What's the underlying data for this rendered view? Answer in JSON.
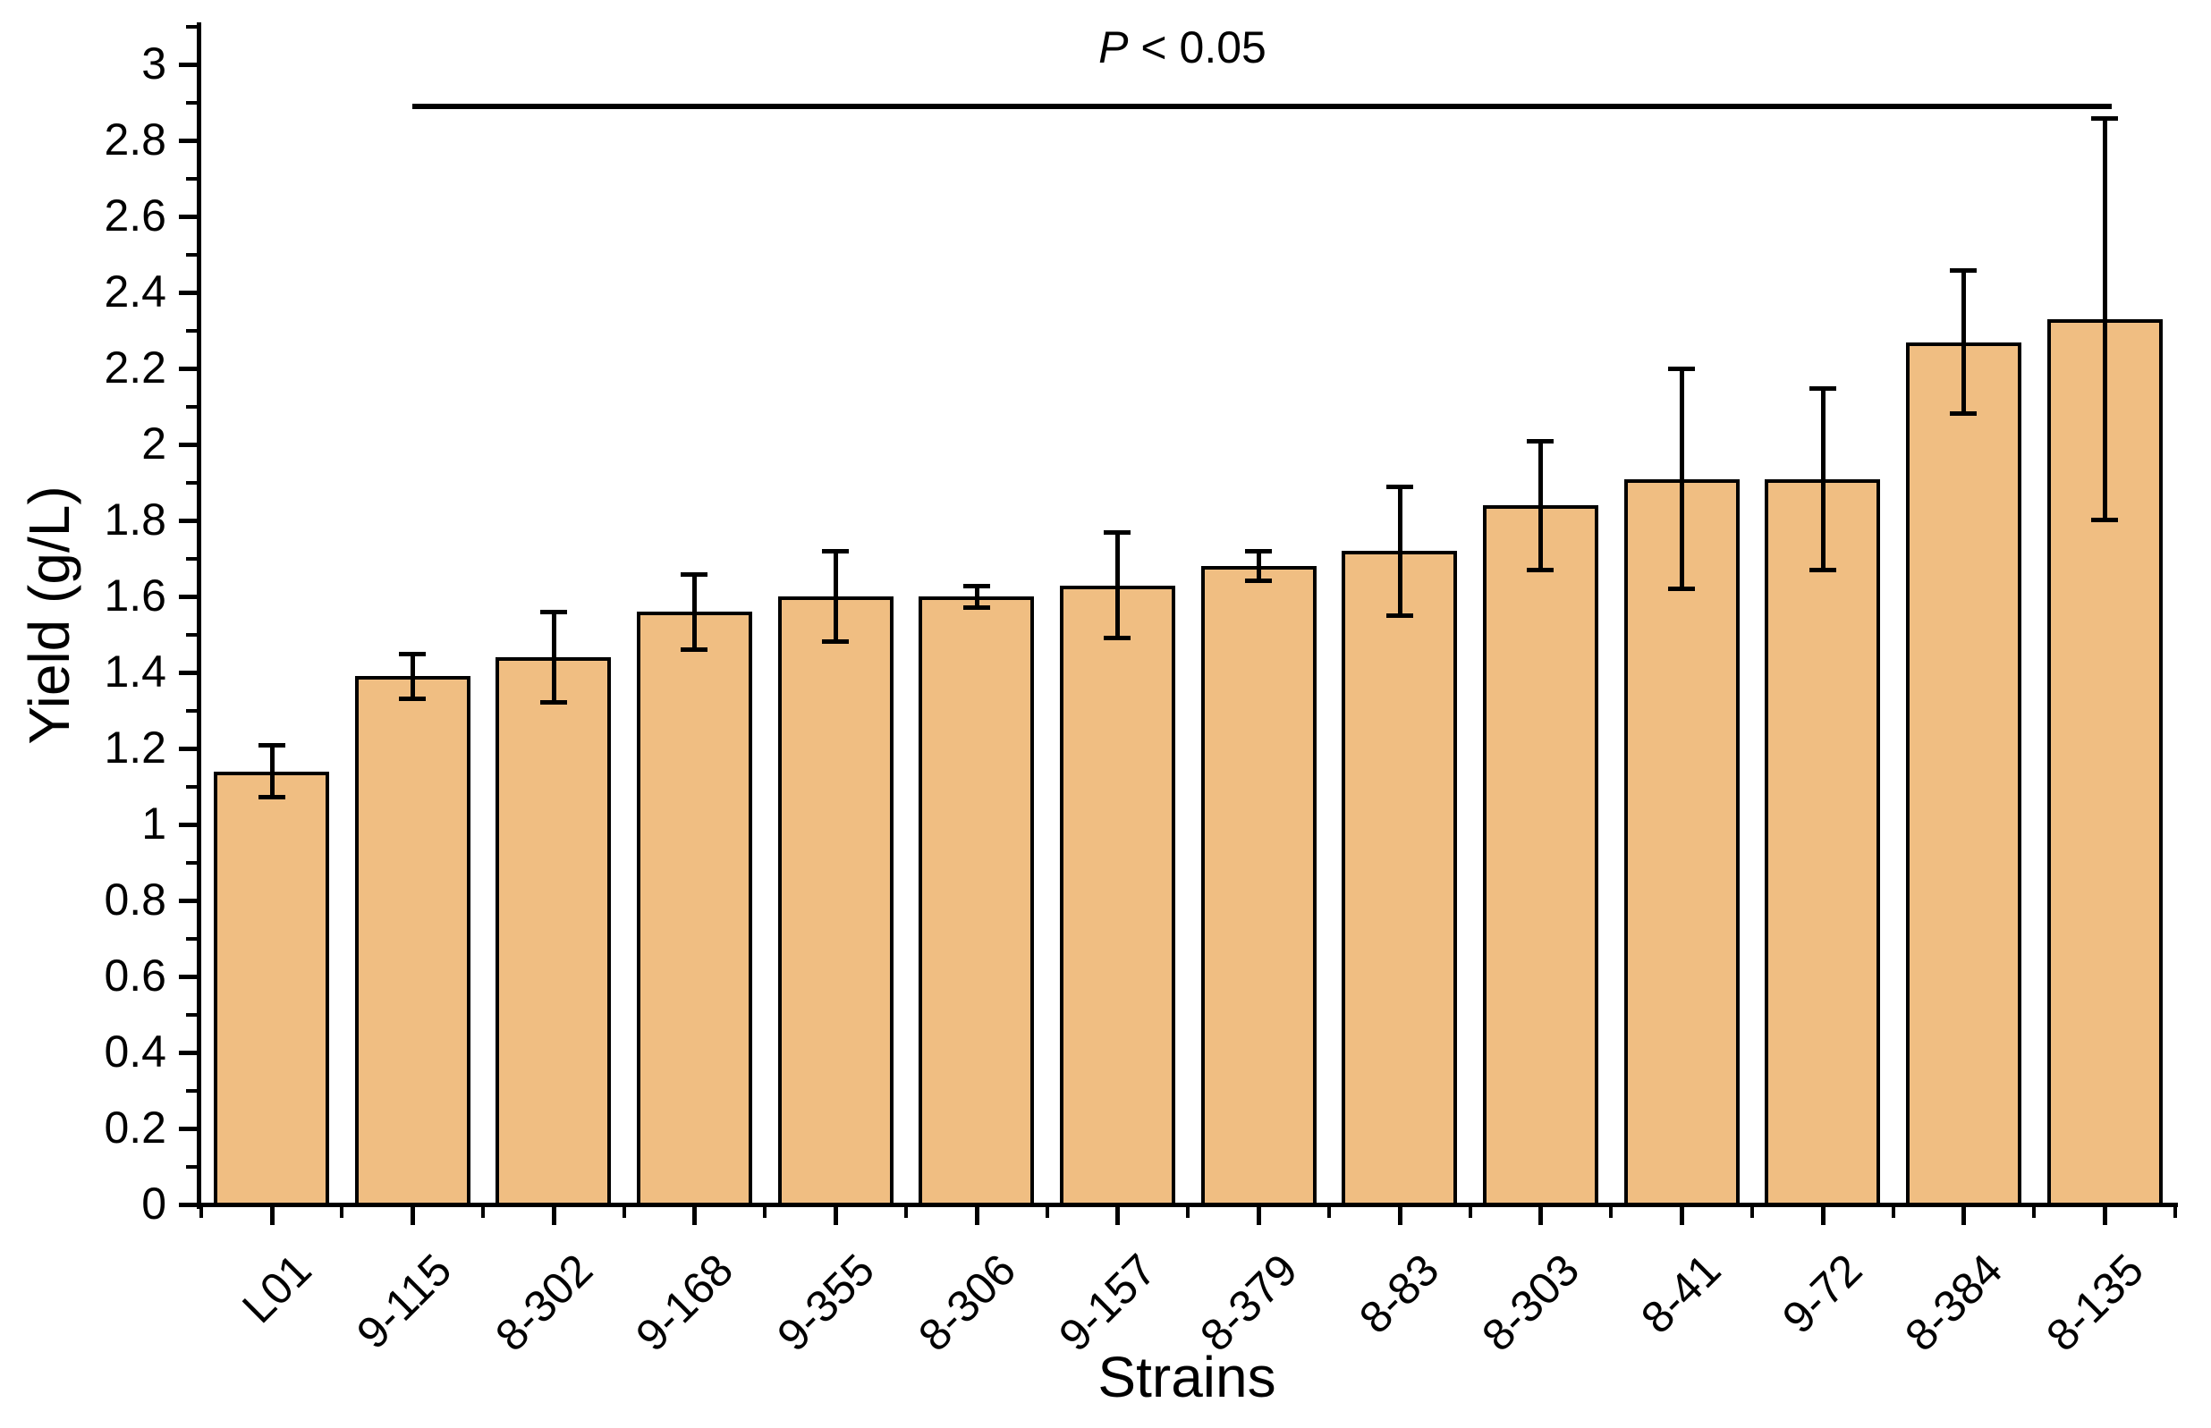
{
  "chart_data": {
    "type": "bar",
    "title": "",
    "xlabel": "Strains",
    "ylabel": "Yield (g/L)",
    "categories": [
      "L01",
      "9-115",
      "8-302",
      "9-168",
      "9-355",
      "8-306",
      "9-157",
      "8-379",
      "8-83",
      "8-303",
      "8-41",
      "9-72",
      "8-384",
      "8-135"
    ],
    "values": [
      1.14,
      1.39,
      1.44,
      1.56,
      1.6,
      1.6,
      1.63,
      1.68,
      1.72,
      1.84,
      1.91,
      1.91,
      2.27,
      2.33
    ],
    "errors": [
      0.07,
      0.06,
      0.12,
      0.1,
      0.12,
      0.03,
      0.14,
      0.04,
      0.17,
      0.17,
      0.29,
      0.24,
      0.19,
      0.53
    ],
    "ylim": [
      0,
      3.1
    ],
    "y_major_step": 0.2,
    "y_minor_step": 0.1,
    "y_tick_labels": [
      "0",
      "0.2",
      "0.4",
      "0.6",
      "0.8",
      "1",
      "1.2",
      "1.4",
      "1.6",
      "1.8",
      "2",
      "2.2",
      "2.4",
      "2.6",
      "2.8",
      "3"
    ],
    "grid": "off",
    "legend": "none",
    "bar_color": "#F0BE82",
    "bar_border_color": "#000000",
    "annotation": {
      "text": "P < 0.05",
      "y_value": 2.89,
      "from_category": "9-115",
      "to_category": "8-135",
      "from_index": 1,
      "to_index": 13
    }
  }
}
